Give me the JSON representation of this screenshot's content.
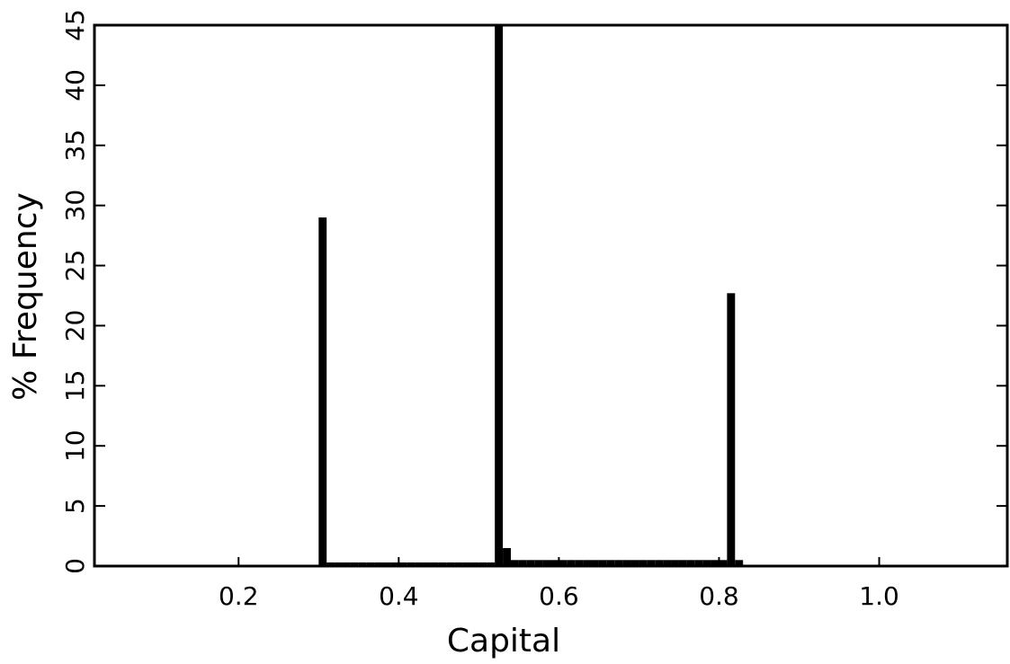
{
  "chart_data": {
    "type": "histogram",
    "xlabel": "Capital",
    "ylabel": "% Frequency",
    "bins": [
      0.3,
      0.31,
      0.32,
      0.33,
      0.34,
      0.35,
      0.36,
      0.37,
      0.38,
      0.39,
      0.4,
      0.41,
      0.42,
      0.43,
      0.44,
      0.45,
      0.46,
      0.47,
      0.48,
      0.49,
      0.5,
      0.51,
      0.52,
      0.53,
      0.54,
      0.55,
      0.56,
      0.57,
      0.58,
      0.59,
      0.6,
      0.61,
      0.62,
      0.63,
      0.64,
      0.65,
      0.66,
      0.67,
      0.68,
      0.69,
      0.7,
      0.71,
      0.72,
      0.73,
      0.74,
      0.75,
      0.76,
      0.77,
      0.78,
      0.79,
      0.8,
      0.81,
      0.82,
      0.83
    ],
    "values": [
      29,
      0.3,
      0.3,
      0.3,
      0.3,
      0.3,
      0.3,
      0.3,
      0.3,
      0.3,
      0.3,
      0.3,
      0.3,
      0.3,
      0.3,
      0.3,
      0.3,
      0.3,
      0.3,
      0.3,
      0.3,
      0.3,
      45,
      1.5,
      0.5,
      0.5,
      0.5,
      0.5,
      0.5,
      0.5,
      0.5,
      0.5,
      0.5,
      0.5,
      0.5,
      0.5,
      0.5,
      0.5,
      0.5,
      0.5,
      0.5,
      0.5,
      0.5,
      0.5,
      0.5,
      0.5,
      0.5,
      0.5,
      0.5,
      0.5,
      0.5,
      22.7,
      0.5
    ],
    "color": "#000000",
    "xlim": [
      0.02,
      1.16
    ],
    "xticks": [
      0.2,
      0.4,
      0.6,
      0.8,
      {
        "value": 1,
        "label": "1.0"
      }
    ],
    "ylim": [
      0,
      45
    ],
    "yticks": [
      0,
      5,
      10,
      15,
      20,
      25,
      30,
      35,
      40,
      45
    ]
  }
}
